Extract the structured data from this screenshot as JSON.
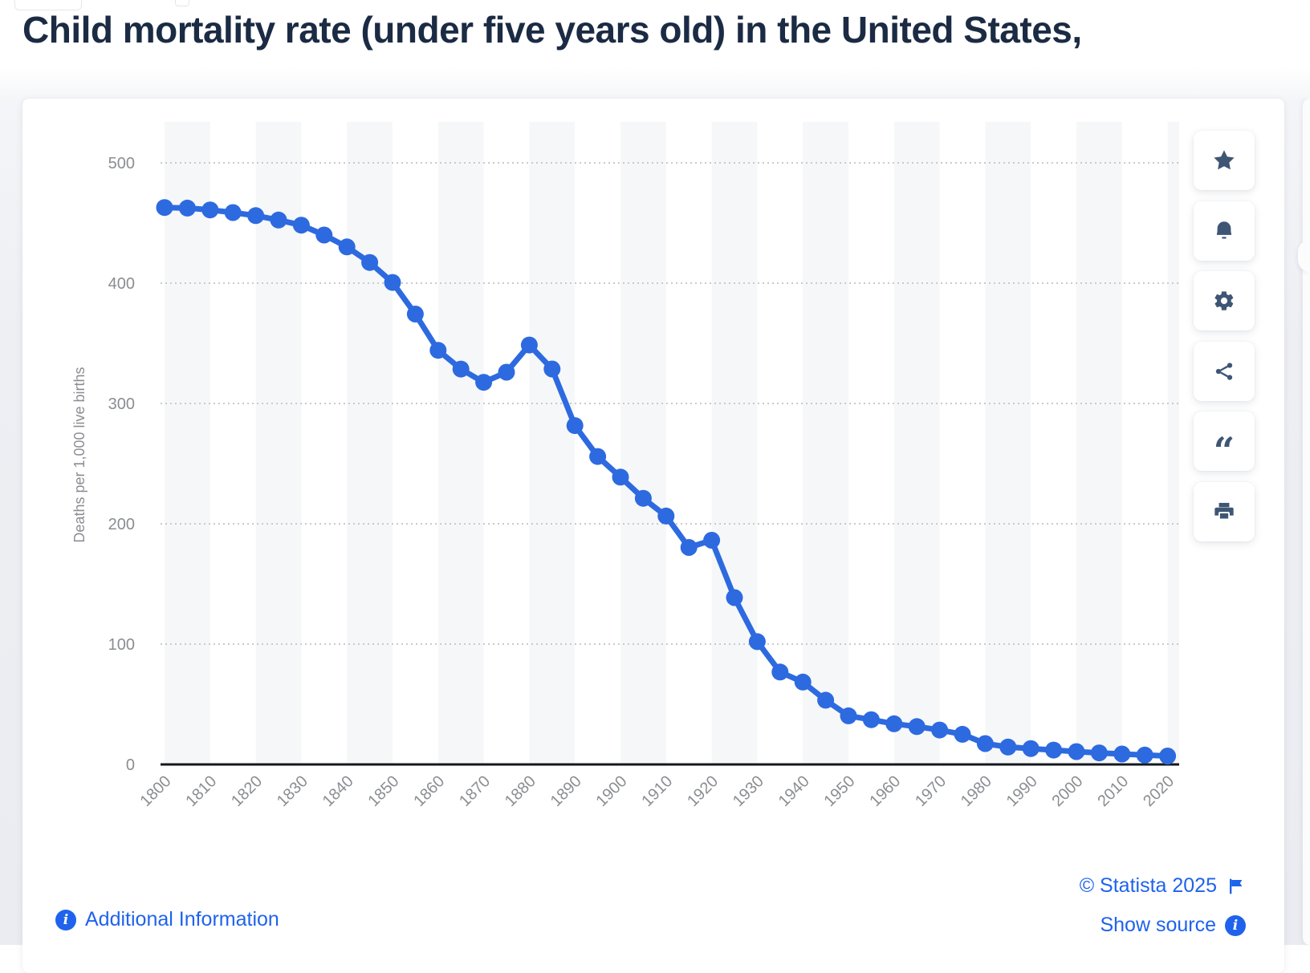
{
  "page": {
    "title": "Child mortality rate (under five years old) in the United States,"
  },
  "chart_data": {
    "type": "line",
    "title": "",
    "xlabel": "",
    "ylabel": "Deaths per 1,000 live births",
    "x": [
      1800,
      1805,
      1810,
      1815,
      1820,
      1825,
      1830,
      1835,
      1840,
      1845,
      1850,
      1855,
      1860,
      1865,
      1870,
      1875,
      1880,
      1885,
      1890,
      1895,
      1900,
      1905,
      1910,
      1915,
      1920,
      1925,
      1930,
      1935,
      1940,
      1945,
      1950,
      1955,
      1960,
      1965,
      1970,
      1975,
      1980,
      1985,
      1990,
      1995,
      2000,
      2005,
      2010,
      2015,
      2020
    ],
    "values": [
      462.9,
      462.4,
      460.9,
      458.7,
      456.1,
      452.5,
      448.2,
      440.0,
      430.1,
      417.2,
      400.6,
      374.3,
      344.2,
      328.6,
      317.6,
      326.0,
      348.6,
      328.7,
      281.6,
      255.9,
      238.8,
      221.2,
      206.5,
      180.3,
      186.3,
      138.7,
      102.1,
      76.8,
      68.5,
      53.4,
      40.4,
      37.2,
      33.8,
      31.5,
      28.6,
      25.1,
      17.3,
      14.5,
      13.2,
      11.9,
      10.7,
      9.6,
      8.7,
      7.8,
      7.0
    ],
    "series_name": "Deaths per 1,000 live births",
    "xlim": [
      1795,
      2025
    ],
    "ylim": [
      0,
      500
    ],
    "y_ticks": [
      0,
      100,
      200,
      300,
      400,
      500
    ],
    "x_tick_labels": [
      "1800",
      "1810",
      "1820",
      "1830",
      "1840",
      "1850",
      "1860",
      "1870",
      "1880",
      "1890",
      "1900",
      "1910",
      "1920",
      "1930",
      "1940",
      "1950",
      "1960",
      "1970",
      "1980",
      "1990",
      "2000",
      "2010",
      "2020"
    ],
    "grid": "horizontal-dotted",
    "legend": "none",
    "line_color": "#2d6ae0",
    "band_color": "#f6f7f8",
    "grid_color": "#c9cacc",
    "axis_color": "#15181d",
    "tick_label_color": "#8a8d92"
  },
  "toolbar": {
    "buttons": [
      {
        "name": "favorite",
        "icon": "star-icon"
      },
      {
        "name": "alert",
        "icon": "bell-icon"
      },
      {
        "name": "settings",
        "icon": "gear-icon"
      },
      {
        "name": "share",
        "icon": "share-icon"
      },
      {
        "name": "cite",
        "icon": "quote-icon"
      },
      {
        "name": "print",
        "icon": "print-icon"
      }
    ]
  },
  "footer": {
    "additional_info_label": "Additional Information",
    "copyright": "© Statista 2025",
    "show_source_label": "Show source"
  },
  "colors": {
    "accent_blue": "#2d6ae0",
    "link_blue": "#1f63ec",
    "icon_slate": "#3e5674",
    "title_navy": "#1b2b44"
  }
}
